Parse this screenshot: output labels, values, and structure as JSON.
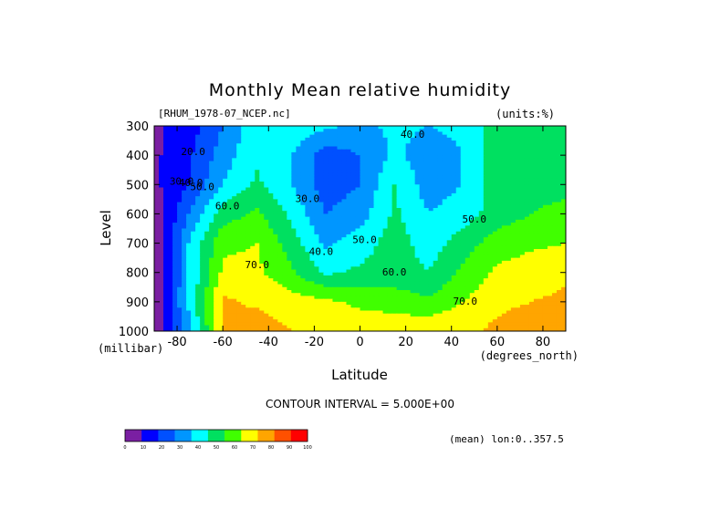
{
  "chart_data": {
    "type": "heatmap",
    "title": "Monthly Mean relative humidity",
    "dataset_label": "[RHUM_1978-07_NCEP.nc]",
    "units_label": "(units:%)",
    "xlabel": "Latitude",
    "x_units": "(degrees_north)",
    "ylabel": "Level",
    "y_units": "(millibar)",
    "x_ticks": [
      -80,
      -60,
      -40,
      -20,
      0,
      20,
      40,
      60,
      80
    ],
    "x_range": [
      -90,
      90
    ],
    "y_ticks": [
      300,
      400,
      500,
      600,
      700,
      800,
      900,
      1000
    ],
    "y_range": [
      1000,
      300
    ],
    "contour_interval_text": "CONTOUR INTERVAL = 5.000E+00",
    "average_text": "(mean) lon:0..357.5",
    "colorbar": {
      "ticks": [
        0,
        10,
        20,
        30,
        40,
        50,
        60,
        70,
        80,
        90,
        100
      ],
      "colors": [
        "#7a1fa2",
        "#0000ff",
        "#0050ff",
        "#0096ff",
        "#00ffff",
        "#00e060",
        "#40ff00",
        "#ffff00",
        "#ffa500",
        "#ff5000",
        "#ff0000"
      ]
    },
    "contour_labels": [
      {
        "text": "40.0",
        "lat": 23,
        "level": 340
      },
      {
        "text": "30.0",
        "lat": -23,
        "level": 560
      },
      {
        "text": "40.0",
        "lat": -17,
        "level": 740
      },
      {
        "text": "50.0",
        "lat": 2,
        "level": 700
      },
      {
        "text": "50.0",
        "lat": 50,
        "level": 630
      },
      {
        "text": "60.0",
        "lat": -58,
        "level": 585
      },
      {
        "text": "60.0",
        "lat": 15,
        "level": 810
      },
      {
        "text": "70.0",
        "lat": -45,
        "level": 785
      },
      {
        "text": "70.0",
        "lat": 46,
        "level": 910
      },
      {
        "text": "50.0",
        "lat": -69,
        "level": 520
      },
      {
        "text": "40.0",
        "lat": -74,
        "level": 505
      },
      {
        "text": "30.0",
        "lat": -78,
        "level": 500
      },
      {
        "text": "20.0",
        "lat": -73,
        "level": 400
      }
    ],
    "grid_lat": [
      -90,
      -75,
      -60,
      -45,
      -30,
      -15,
      0,
      15,
      30,
      45,
      60,
      75,
      90
    ],
    "grid_levels": [
      300,
      400,
      500,
      600,
      700,
      800,
      900,
      1000
    ],
    "values": [
      [
        8,
        15,
        30,
        48,
        48,
        42,
        38,
        42,
        40,
        42,
        55,
        55,
        50
      ],
      [
        8,
        18,
        35,
        48,
        40,
        25,
        30,
        42,
        35,
        40,
        55,
        55,
        52
      ],
      [
        8,
        20,
        40,
        52,
        40,
        25,
        30,
        50,
        35,
        40,
        55,
        55,
        55
      ],
      [
        0,
        30,
        55,
        62,
        48,
        30,
        35,
        52,
        40,
        45,
        55,
        60,
        65
      ],
      [
        0,
        40,
        68,
        70,
        55,
        38,
        45,
        55,
        45,
        55,
        65,
        68,
        70
      ],
      [
        0,
        40,
        72,
        72,
        62,
        48,
        52,
        55,
        50,
        62,
        72,
        75,
        78
      ],
      [
        0,
        42,
        82,
        78,
        75,
        72,
        68,
        65,
        62,
        70,
        78,
        80,
        82
      ],
      [
        0,
        35,
        80,
        86,
        80,
        78,
        76,
        78,
        78,
        78,
        82,
        85,
        90
      ]
    ]
  }
}
